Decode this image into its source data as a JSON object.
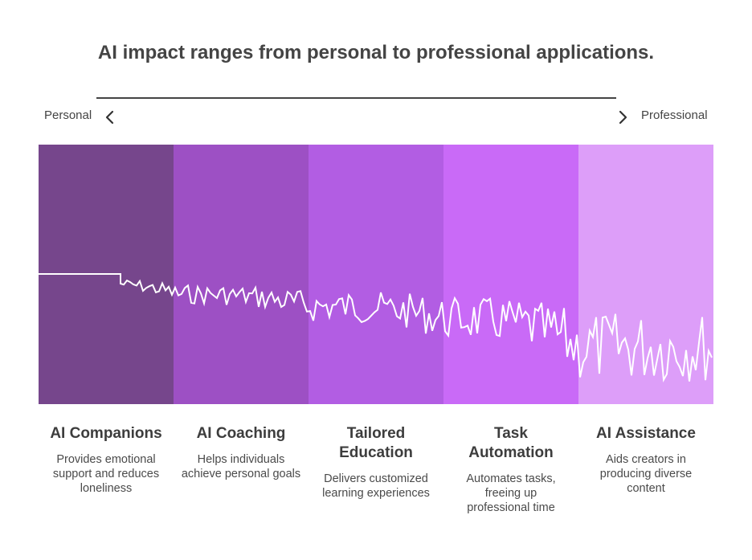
{
  "title": "AI impact ranges from personal to professional applications.",
  "axis": {
    "left_label": "Personal",
    "right_label": "Professional"
  },
  "colors": {
    "segment_1": "#76468c",
    "segment_2": "#9d50c4",
    "segment_3": "#b25de3",
    "segment_4": "#c96af7",
    "segment_5": "#dd9ef9",
    "wave": "#ffffff",
    "text": "#3d3d3d"
  },
  "segments": [
    {
      "title": "AI Companions",
      "description": "Provides emotional support and reduces loneliness",
      "intensity": 0.1
    },
    {
      "title": "AI Coaching",
      "description": "Helps individuals achieve personal goals",
      "intensity": 0.25
    },
    {
      "title": "Tailored Education",
      "description": "Delivers customized learning experiences",
      "intensity": 0.4
    },
    {
      "title": "Task Automation",
      "description": "Automates tasks, freeing up professional time",
      "intensity": 0.55
    },
    {
      "title": "AI Assistance",
      "description": "Aids creators in producing diverse content",
      "intensity": 0.9
    }
  ]
}
